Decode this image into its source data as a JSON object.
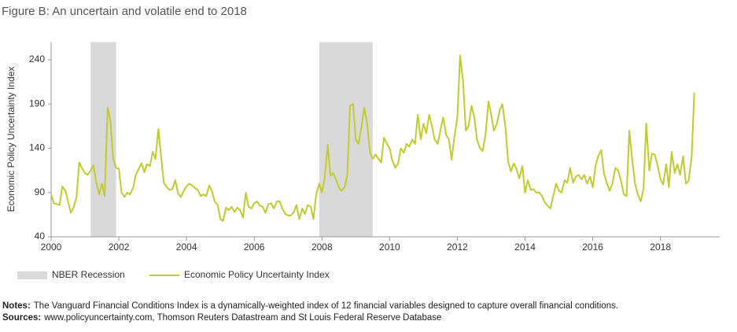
{
  "chart_data": {
    "type": "line",
    "title": "Figure B: An uncertain and volatile end to 2018",
    "ylabel": "Economic Policy Uncertainty Index",
    "xlim": [
      2000,
      2019.75
    ],
    "xticks": [
      2000,
      2002,
      2004,
      2006,
      2008,
      2010,
      2012,
      2014,
      2016,
      2018
    ],
    "ylim": [
      40,
      260
    ],
    "yticks": [
      40,
      90,
      140,
      190,
      240
    ],
    "recessions": {
      "name": "NBER Recession",
      "color": "#d9d9d9",
      "spans": [
        [
          2001.17,
          2001.92
        ],
        [
          2007.92,
          2009.5
        ]
      ]
    },
    "series": [
      {
        "name": "Economic Policy Uncertainty Index",
        "color": "#c2cb2e",
        "x": [
          2000,
          2000.08,
          2000.17,
          2000.25,
          2000.33,
          2000.42,
          2000.5,
          2000.58,
          2000.67,
          2000.75,
          2000.83,
          2000.92,
          2001,
          2001.08,
          2001.17,
          2001.25,
          2001.33,
          2001.42,
          2001.5,
          2001.58,
          2001.67,
          2001.75,
          2001.83,
          2001.92,
          2002,
          2002.08,
          2002.17,
          2002.25,
          2002.33,
          2002.42,
          2002.5,
          2002.58,
          2002.67,
          2002.75,
          2002.83,
          2002.92,
          2003,
          2003.08,
          2003.17,
          2003.25,
          2003.33,
          2003.42,
          2003.5,
          2003.58,
          2003.67,
          2003.75,
          2003.83,
          2003.92,
          2004,
          2004.08,
          2004.17,
          2004.25,
          2004.33,
          2004.42,
          2004.5,
          2004.58,
          2004.67,
          2004.75,
          2004.83,
          2004.92,
          2005,
          2005.08,
          2005.17,
          2005.25,
          2005.33,
          2005.42,
          2005.5,
          2005.58,
          2005.67,
          2005.75,
          2005.83,
          2005.92,
          2006,
          2006.08,
          2006.17,
          2006.25,
          2006.33,
          2006.42,
          2006.5,
          2006.58,
          2006.67,
          2006.75,
          2006.83,
          2006.92,
          2007,
          2007.08,
          2007.17,
          2007.25,
          2007.33,
          2007.42,
          2007.5,
          2007.58,
          2007.67,
          2007.75,
          2007.83,
          2007.92,
          2008,
          2008.08,
          2008.17,
          2008.25,
          2008.33,
          2008.42,
          2008.5,
          2008.58,
          2008.67,
          2008.75,
          2008.83,
          2008.92,
          2009,
          2009.08,
          2009.17,
          2009.25,
          2009.33,
          2009.42,
          2009.5,
          2009.58,
          2009.67,
          2009.75,
          2009.83,
          2009.92,
          2010,
          2010.08,
          2010.17,
          2010.25,
          2010.33,
          2010.42,
          2010.5,
          2010.58,
          2010.67,
          2010.75,
          2010.83,
          2010.92,
          2011,
          2011.08,
          2011.17,
          2011.25,
          2011.33,
          2011.42,
          2011.5,
          2011.58,
          2011.67,
          2011.75,
          2011.83,
          2011.92,
          2012,
          2012.08,
          2012.17,
          2012.25,
          2012.33,
          2012.42,
          2012.5,
          2012.58,
          2012.67,
          2012.75,
          2012.83,
          2012.92,
          2013,
          2013.08,
          2013.17,
          2013.25,
          2013.33,
          2013.42,
          2013.5,
          2013.58,
          2013.67,
          2013.75,
          2013.83,
          2013.92,
          2014,
          2014.08,
          2014.17,
          2014.25,
          2014.33,
          2014.42,
          2014.5,
          2014.58,
          2014.67,
          2014.75,
          2014.83,
          2014.92,
          2015,
          2015.08,
          2015.17,
          2015.25,
          2015.33,
          2015.42,
          2015.5,
          2015.58,
          2015.67,
          2015.75,
          2015.83,
          2015.92,
          2016,
          2016.08,
          2016.17,
          2016.25,
          2016.33,
          2016.42,
          2016.5,
          2016.58,
          2016.67,
          2016.75,
          2016.83,
          2016.92,
          2017,
          2017.08,
          2017.17,
          2017.25,
          2017.33,
          2017.42,
          2017.5,
          2017.58,
          2017.67,
          2017.75,
          2017.83,
          2017.92,
          2018,
          2018.08,
          2018.17,
          2018.25,
          2018.33,
          2018.42,
          2018.5,
          2018.58,
          2018.67,
          2018.75,
          2018.83,
          2018.92,
          2019
        ],
        "values": [
          88,
          78,
          77,
          76,
          97,
          92,
          80,
          67,
          74,
          85,
          124,
          117,
          112,
          110,
          115,
          121,
          102,
          88,
          100,
          86,
          186,
          172,
          128,
          118,
          117,
          90,
          85,
          90,
          88,
          95,
          110,
          116,
          123,
          113,
          122,
          120,
          136,
          128,
          162,
          130,
          101,
          96,
          93,
          94,
          104,
          89,
          85,
          92,
          97,
          100,
          98,
          95,
          93,
          86,
          88,
          86,
          98,
          92,
          80,
          76,
          60,
          58,
          73,
          70,
          74,
          68,
          73,
          70,
          62,
          90,
          74,
          72,
          78,
          80,
          75,
          74,
          67,
          77,
          78,
          72,
          80,
          80,
          72,
          66,
          64,
          64,
          68,
          76,
          60,
          72,
          66,
          76,
          74,
          60,
          88,
          100,
          90,
          106,
          144,
          109,
          112,
          104,
          96,
          92,
          96,
          110,
          188,
          190,
          150,
          145,
          165,
          186,
          170,
          135,
          128,
          133,
          128,
          124,
          152,
          145,
          140,
          126,
          118,
          123,
          140,
          135,
          145,
          142,
          150,
          145,
          178,
          150,
          168,
          157,
          178,
          165,
          150,
          145,
          160,
          175,
          155,
          150,
          127,
          155,
          175,
          245,
          215,
          160,
          165,
          188,
          175,
          150,
          140,
          137,
          155,
          193,
          178,
          160,
          168,
          183,
          190,
          164,
          125,
          114,
          123,
          116,
          106,
          120,
          90,
          104,
          93,
          94,
          90,
          90,
          86,
          79,
          75,
          72,
          86,
          100,
          92,
          90,
          104,
          101,
          118,
          101,
          108,
          110,
          105,
          110,
          100,
          108,
          96,
          120,
          132,
          138,
          112,
          100,
          92,
          100,
          118,
          115,
          104,
          88,
          86,
          160,
          125,
          100,
          88,
          80,
          95,
          168,
          115,
          134,
          133,
          120,
          105,
          99,
          122,
          96,
          136,
          112,
          122,
          110,
          131,
          100,
          103,
          130,
          203
        ]
      }
    ],
    "notes": [
      {
        "label": "Notes:",
        "text": "The Vanguard Financial Conditions Index is a dynamically-weighted index of 12 financial variables designed to capture overall financial conditions."
      },
      {
        "label": "Sources:",
        "text": "www.policyuncertainty.com, Thomson Reuters Datastream and St Louis Federal Reserve Database"
      }
    ]
  }
}
